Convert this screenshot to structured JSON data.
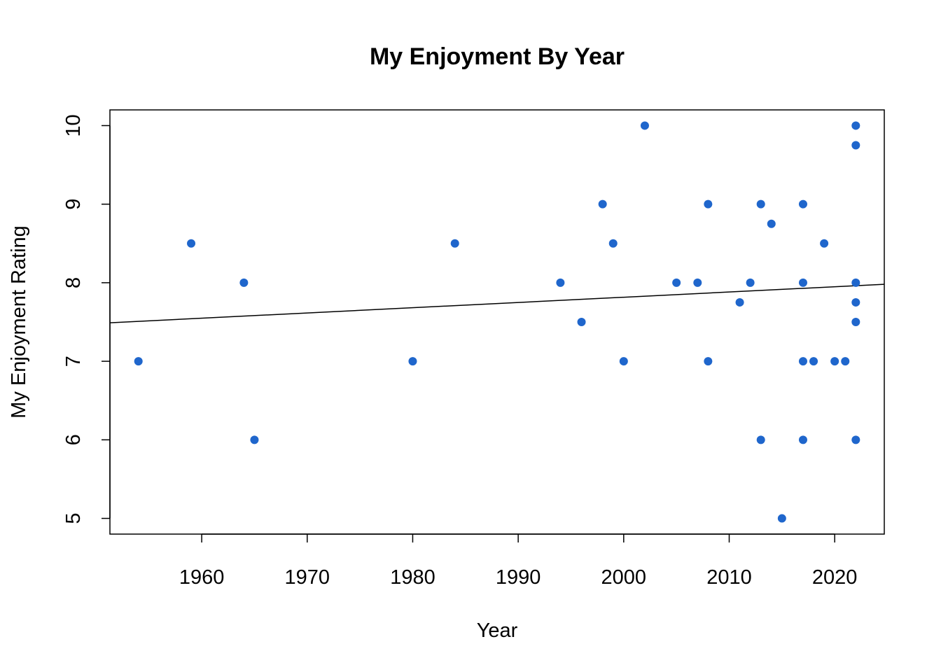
{
  "chart_data": {
    "type": "scatter",
    "title": "My Enjoyment By Year",
    "xlabel": "Year",
    "ylabel": "My Enjoyment Rating",
    "xlim": [
      1951.3,
      2024.7
    ],
    "ylim": [
      4.8,
      10.2
    ],
    "x_ticks": [
      "1960",
      "1970",
      "1980",
      "1990",
      "2000",
      "2010",
      "2020"
    ],
    "y_ticks": [
      "5",
      "6",
      "7",
      "8",
      "9",
      "10"
    ],
    "grid": false,
    "legend": "none",
    "point_color": "#1F66CC",
    "trend_line": {
      "x": [
        1951.3,
        2024.7
      ],
      "y": [
        7.49,
        7.98
      ]
    },
    "points": [
      {
        "x": 1954,
        "y": 7
      },
      {
        "x": 1959,
        "y": 8.5
      },
      {
        "x": 1964,
        "y": 8
      },
      {
        "x": 1965,
        "y": 6
      },
      {
        "x": 1980,
        "y": 7
      },
      {
        "x": 1984,
        "y": 8.5
      },
      {
        "x": 1994,
        "y": 8
      },
      {
        "x": 1996,
        "y": 7.5
      },
      {
        "x": 1998,
        "y": 9
      },
      {
        "x": 1999,
        "y": 8.5
      },
      {
        "x": 2000,
        "y": 7
      },
      {
        "x": 2002,
        "y": 10
      },
      {
        "x": 2005,
        "y": 8
      },
      {
        "x": 2007,
        "y": 8
      },
      {
        "x": 2008,
        "y": 9
      },
      {
        "x": 2008,
        "y": 7
      },
      {
        "x": 2011,
        "y": 7.75
      },
      {
        "x": 2012,
        "y": 8
      },
      {
        "x": 2013,
        "y": 9
      },
      {
        "x": 2013,
        "y": 6
      },
      {
        "x": 2014,
        "y": 8.75
      },
      {
        "x": 2015,
        "y": 5
      },
      {
        "x": 2017,
        "y": 9
      },
      {
        "x": 2017,
        "y": 8
      },
      {
        "x": 2017,
        "y": 7
      },
      {
        "x": 2017,
        "y": 6
      },
      {
        "x": 2018,
        "y": 7
      },
      {
        "x": 2019,
        "y": 8.5
      },
      {
        "x": 2020,
        "y": 7
      },
      {
        "x": 2021,
        "y": 7
      },
      {
        "x": 2022,
        "y": 10
      },
      {
        "x": 2022,
        "y": 9.75
      },
      {
        "x": 2022,
        "y": 8
      },
      {
        "x": 2022,
        "y": 7.75
      },
      {
        "x": 2022,
        "y": 7.5
      },
      {
        "x": 2022,
        "y": 6
      }
    ]
  }
}
